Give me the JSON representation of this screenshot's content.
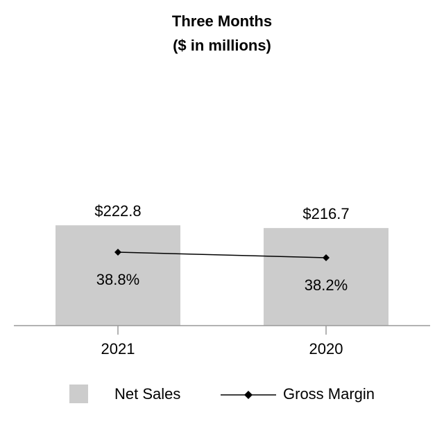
{
  "chart_data": {
    "type": "bar",
    "title": "Three Months",
    "subtitle": "($ in millions)",
    "categories": [
      "2021",
      "2020"
    ],
    "series": [
      {
        "name": "Net Sales",
        "kind": "bar",
        "values": [
          222.8,
          216.7
        ],
        "labels": [
          "$222.8",
          "$216.7"
        ],
        "color": "#cccccc"
      },
      {
        "name": "Gross Margin",
        "kind": "line",
        "values": [
          38.8,
          38.2
        ],
        "labels": [
          "38.8%",
          "38.2%"
        ],
        "color": "#000000",
        "marker": "diamond"
      }
    ],
    "legend": "bottom",
    "grid": false
  }
}
